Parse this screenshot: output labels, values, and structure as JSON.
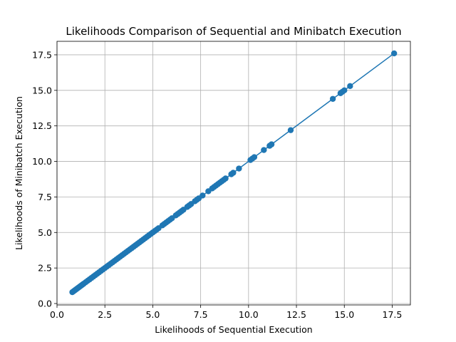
{
  "chart_data": {
    "type": "scatter",
    "title": "Likelihoods Comparison of Sequential and Minibatch Execution",
    "xlabel": "Likelihoods of Sequential Execution",
    "ylabel": "Likelihoods of Minibatch Execution",
    "xlim": [
      0.0,
      18.45
    ],
    "ylim": [
      -0.1,
      18.45
    ],
    "xticks": [
      0.0,
      2.5,
      5.0,
      7.5,
      10.0,
      12.5,
      15.0,
      17.5
    ],
    "yticks": [
      0.0,
      2.5,
      5.0,
      7.5,
      10.0,
      12.5,
      15.0,
      17.5
    ],
    "xtick_labels": [
      "0.0",
      "2.5",
      "5.0",
      "7.5",
      "10.0",
      "12.5",
      "15.0",
      "17.5"
    ],
    "ytick_labels": [
      "0.0",
      "2.5",
      "5.0",
      "7.5",
      "10.0",
      "12.5",
      "15.0",
      "17.5"
    ],
    "grid": true,
    "line_connecting_points": true,
    "series_color": "#1f77b4",
    "series": [
      {
        "x": [
          0.8,
          0.85,
          0.9,
          0.95,
          1.0,
          1.05,
          1.1,
          1.15,
          1.2,
          1.25,
          1.3,
          1.35,
          1.4,
          1.5,
          1.6,
          1.7,
          1.8,
          1.9,
          2.0,
          2.1,
          2.2,
          2.3,
          2.4,
          2.5,
          2.6,
          2.7,
          2.8,
          2.9,
          3.0,
          3.1,
          3.2,
          3.3,
          3.4,
          3.5,
          3.6,
          3.7,
          3.8,
          3.9,
          4.0,
          4.1,
          4.2,
          4.3,
          4.4,
          4.5,
          4.6,
          4.7,
          4.8,
          4.9,
          5.0,
          5.1,
          5.2,
          5.3,
          5.5,
          5.6,
          5.7,
          5.8,
          5.9,
          6.0,
          6.2,
          6.3,
          6.4,
          6.5,
          6.6,
          6.8,
          6.9,
          7.0,
          7.2,
          7.3,
          7.4,
          7.6,
          7.9,
          8.1,
          8.2,
          8.3,
          8.4,
          8.5,
          8.6,
          8.7,
          8.8,
          9.1,
          9.2,
          9.5,
          10.1,
          10.2,
          10.3,
          10.8,
          11.1,
          11.2,
          12.2,
          14.4,
          14.8,
          14.9,
          15.0,
          15.3,
          17.6
        ],
        "y": [
          0.8,
          0.85,
          0.9,
          0.95,
          1.0,
          1.05,
          1.1,
          1.15,
          1.2,
          1.25,
          1.3,
          1.35,
          1.4,
          1.5,
          1.6,
          1.7,
          1.8,
          1.9,
          2.0,
          2.1,
          2.2,
          2.3,
          2.4,
          2.5,
          2.6,
          2.7,
          2.8,
          2.9,
          3.0,
          3.1,
          3.2,
          3.3,
          3.4,
          3.5,
          3.6,
          3.7,
          3.8,
          3.9,
          4.0,
          4.1,
          4.2,
          4.3,
          4.4,
          4.5,
          4.6,
          4.7,
          4.8,
          4.9,
          5.0,
          5.1,
          5.2,
          5.3,
          5.5,
          5.6,
          5.7,
          5.8,
          5.9,
          6.0,
          6.2,
          6.3,
          6.4,
          6.5,
          6.6,
          6.8,
          6.9,
          7.0,
          7.2,
          7.3,
          7.4,
          7.6,
          7.9,
          8.1,
          8.2,
          8.3,
          8.4,
          8.5,
          8.6,
          8.7,
          8.8,
          9.1,
          9.2,
          9.5,
          10.1,
          10.2,
          10.3,
          10.8,
          11.1,
          11.2,
          12.2,
          14.4,
          14.8,
          14.9,
          15.0,
          15.3,
          17.6
        ]
      }
    ]
  }
}
